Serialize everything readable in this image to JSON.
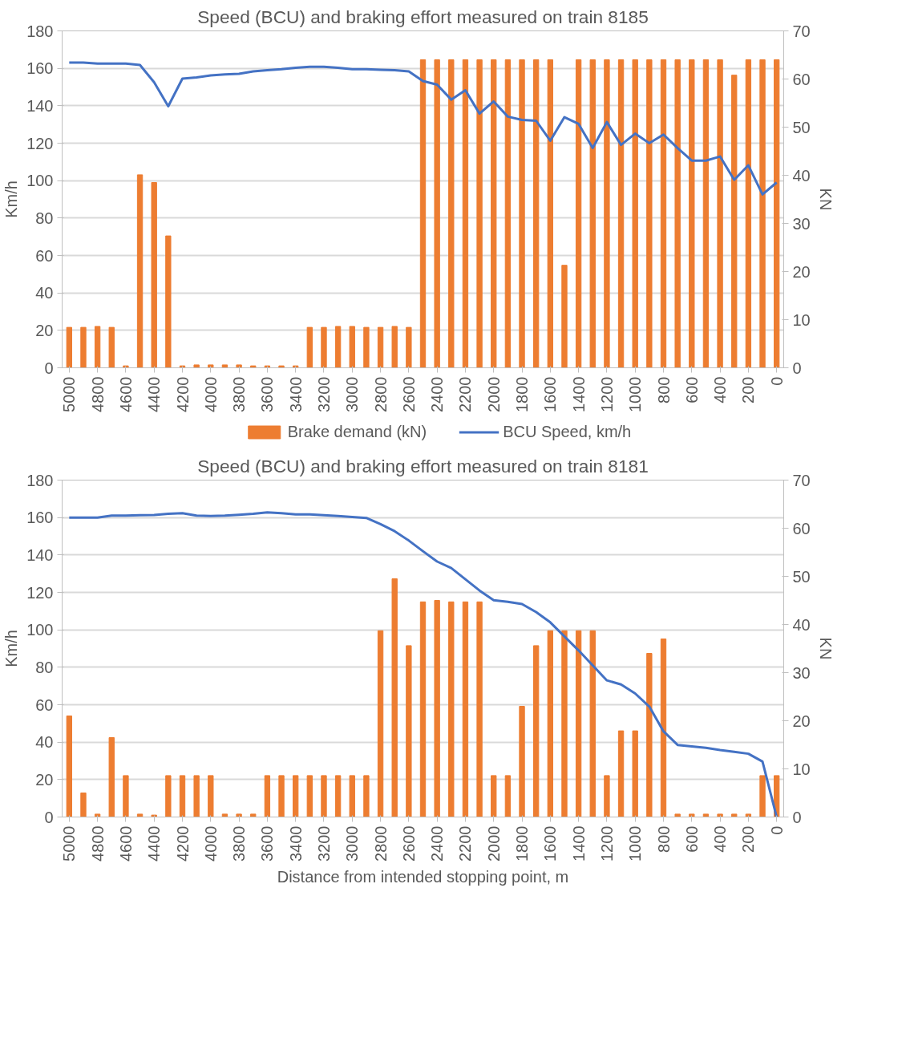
{
  "chart_data": [
    {
      "type": "bar",
      "title": "Speed (BCU) and braking effort measured on train 8185",
      "ylabel": "Km/h",
      "y2label": "KN",
      "categories": [
        "5000",
        null,
        "4800",
        null,
        "4600",
        null,
        "4400",
        null,
        "4200",
        null,
        "4000",
        null,
        "3800",
        null,
        "3600",
        null,
        "3400",
        null,
        "3200",
        null,
        "3000",
        null,
        "2800",
        null,
        "2600",
        null,
        "2400",
        null,
        "2200",
        null,
        "2000",
        null,
        "1800",
        null,
        "1600",
        null,
        "1400",
        null,
        "1200",
        null,
        "1000",
        null,
        "800",
        null,
        "600",
        null,
        "400",
        null,
        "200",
        null,
        "0"
      ],
      "series": [
        {
          "name": "Brake demand (kN)",
          "type": "bar",
          "axis": "y2",
          "color": "#ed7d31",
          "values": [
            8.4,
            8.4,
            8.6,
            8.4,
            0.4,
            40.1,
            38.5,
            27.4,
            0.4,
            0.6,
            0.6,
            0.6,
            0.6,
            0.4,
            0.4,
            0.4,
            0.4,
            8.4,
            8.4,
            8.6,
            8.6,
            8.4,
            8.4,
            8.6,
            8.4,
            64,
            64,
            64,
            64,
            64,
            64,
            64,
            64,
            64,
            64,
            21.3,
            64,
            64,
            64,
            64,
            64,
            64,
            64,
            64,
            64,
            64,
            64,
            60.8,
            64,
            64,
            64
          ]
        },
        {
          "name": "BCU Speed, km/h",
          "type": "line",
          "color": "#4472c4",
          "values": [
            163.1,
            163.1,
            162.5,
            162.5,
            162.5,
            161.8,
            152.6,
            139.7,
            154.5,
            155.1,
            156.2,
            156.7,
            157.1,
            158.4,
            159,
            159.5,
            160.3,
            160.8,
            160.8,
            160.3,
            159.5,
            159.5,
            159.2,
            159,
            158.4,
            153.2,
            151.3,
            143.3,
            148.3,
            135.8,
            142.3,
            134.2,
            132.4,
            132,
            121.3,
            133.9,
            130.3,
            117.4,
            131.3,
            119.1,
            125.1,
            120,
            124.6,
            117.4,
            110.7,
            110.7,
            112.9,
            100.4,
            108.2,
            92.6,
            99
          ]
        }
      ],
      "ylim": [
        0,
        180
      ],
      "yticks": [
        0,
        20,
        40,
        60,
        80,
        100,
        120,
        140,
        160,
        180
      ],
      "y2lim": [
        0,
        70
      ],
      "y2ticks": [
        0,
        10,
        20,
        30,
        40,
        50,
        60,
        70
      ],
      "grid": "y",
      "legend": "bottom"
    },
    {
      "type": "bar",
      "title": "Speed (BCU) and braking effort measured on train 8181",
      "ylabel": "Km/h",
      "y2label": "KN",
      "xlabel": "Distance from intended stopping point, m",
      "categories": [
        "5000",
        null,
        "4800",
        null,
        "4600",
        null,
        "4400",
        null,
        "4200",
        null,
        "4000",
        null,
        "3800",
        null,
        "3600",
        null,
        "3400",
        null,
        "3200",
        null,
        "3000",
        null,
        "2800",
        null,
        "2600",
        null,
        "2400",
        null,
        "2200",
        null,
        "2000",
        null,
        "1800",
        null,
        "1600",
        null,
        "1400",
        null,
        "1200",
        null,
        "1000",
        null,
        "800",
        null,
        "600",
        null,
        "400",
        null,
        "200",
        null,
        "0"
      ],
      "series": [
        {
          "type": "bar",
          "axis": "y2",
          "color": "#ed7d31",
          "values": [
            21,
            5,
            0.6,
            16.5,
            8.6,
            0.6,
            0.4,
            8.6,
            8.6,
            8.6,
            8.6,
            0.6,
            0.6,
            0.6,
            8.6,
            8.6,
            8.6,
            8.6,
            8.6,
            8.6,
            8.6,
            8.6,
            38.7,
            49.5,
            35.6,
            44.7,
            45,
            44.7,
            44.7,
            44.7,
            8.6,
            8.6,
            23,
            35.6,
            38.7,
            38.7,
            38.7,
            38.7,
            8.6,
            17.9,
            17.9,
            34,
            37,
            0.6,
            0.6,
            0.6,
            0.6,
            0.6,
            0.6,
            8.6,
            8.6
          ]
        },
        {
          "type": "line",
          "color": "#4472c4",
          "values": [
            160,
            160,
            160,
            161,
            161,
            161.2,
            161.4,
            162,
            162.3,
            161,
            160.8,
            161,
            161.5,
            162,
            162.8,
            162.3,
            161.7,
            161.7,
            161.2,
            160.8,
            160.3,
            159.8,
            156.5,
            152.7,
            147.7,
            142,
            136.5,
            133,
            127,
            121,
            115.8,
            115,
            113.8,
            109.5,
            104,
            96.5,
            89,
            81,
            73,
            70.8,
            66,
            59,
            45.8,
            38.5,
            37.7,
            37,
            35.8,
            34.8,
            33.8,
            29.6,
            0
          ]
        }
      ],
      "ylim": [
        0,
        180
      ],
      "yticks": [
        0,
        20,
        40,
        60,
        80,
        100,
        120,
        140,
        160,
        180
      ],
      "y2lim": [
        0,
        70
      ],
      "y2ticks": [
        0,
        10,
        20,
        30,
        40,
        50,
        60,
        70
      ],
      "grid": "y"
    }
  ]
}
